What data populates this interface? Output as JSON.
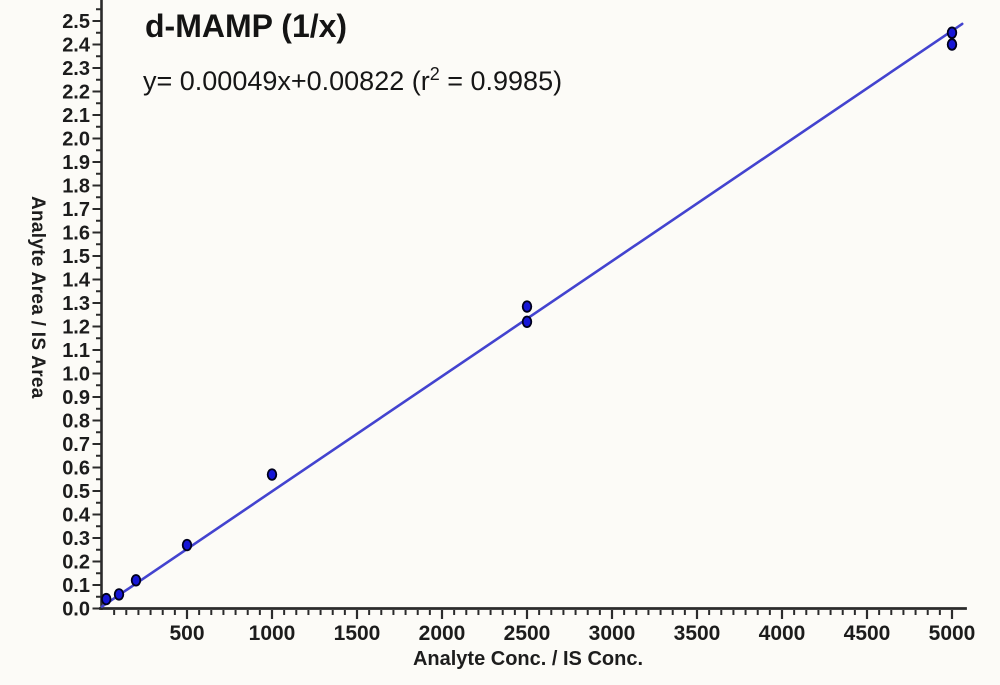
{
  "title": "d-MAMP (1/x)",
  "equation": {
    "prefix": "y= 0.00049x+0.00822 (r",
    "sup": "2",
    "suffix": " = 0.9985)"
  },
  "axes": {
    "x_label": "Analyte Conc. / IS Conc.",
    "y_label": "Analyte Area / IS Area"
  },
  "colors": {
    "line": "#4343cf",
    "point_fill": "#1616d6",
    "point_stroke": "#00001c",
    "axis": "#2b2b2b",
    "background": "#fcfbf7"
  },
  "chart_data": {
    "type": "scatter",
    "title": "d-MAMP (1/x)",
    "equation": "y= 0.00049x+0.00822 (r^2 = 0.9985)",
    "fit": {
      "slope": 0.00049,
      "intercept": 0.00822,
      "r_squared": 0.9985,
      "weighting": "1/x"
    },
    "xlabel": "Analyte Conc. / IS Conc.",
    "ylabel": "Analyte Area / IS Area",
    "xlim": [
      0,
      5070
    ],
    "ylim": [
      0,
      2.55
    ],
    "x_major_ticks": [
      500,
      1000,
      1500,
      2000,
      2500,
      3000,
      3500,
      4000,
      4500,
      5000
    ],
    "x_minor_divisions": 7,
    "y_major_step": 0.1,
    "y_minor_step": 0.05,
    "y_tick_decimals": 1,
    "grid": false,
    "legend": false,
    "points": [
      {
        "x": 25,
        "y": 0.04
      },
      {
        "x": 100,
        "y": 0.06
      },
      {
        "x": 200,
        "y": 0.12
      },
      {
        "x": 500,
        "y": 0.27
      },
      {
        "x": 1000,
        "y": 0.57
      },
      {
        "x": 2500,
        "y": 1.22
      },
      {
        "x": 2500,
        "y": 1.285
      },
      {
        "x": 5000,
        "y": 2.4
      },
      {
        "x": 5000,
        "y": 2.45
      }
    ],
    "line_x_range": [
      0,
      5060
    ]
  }
}
